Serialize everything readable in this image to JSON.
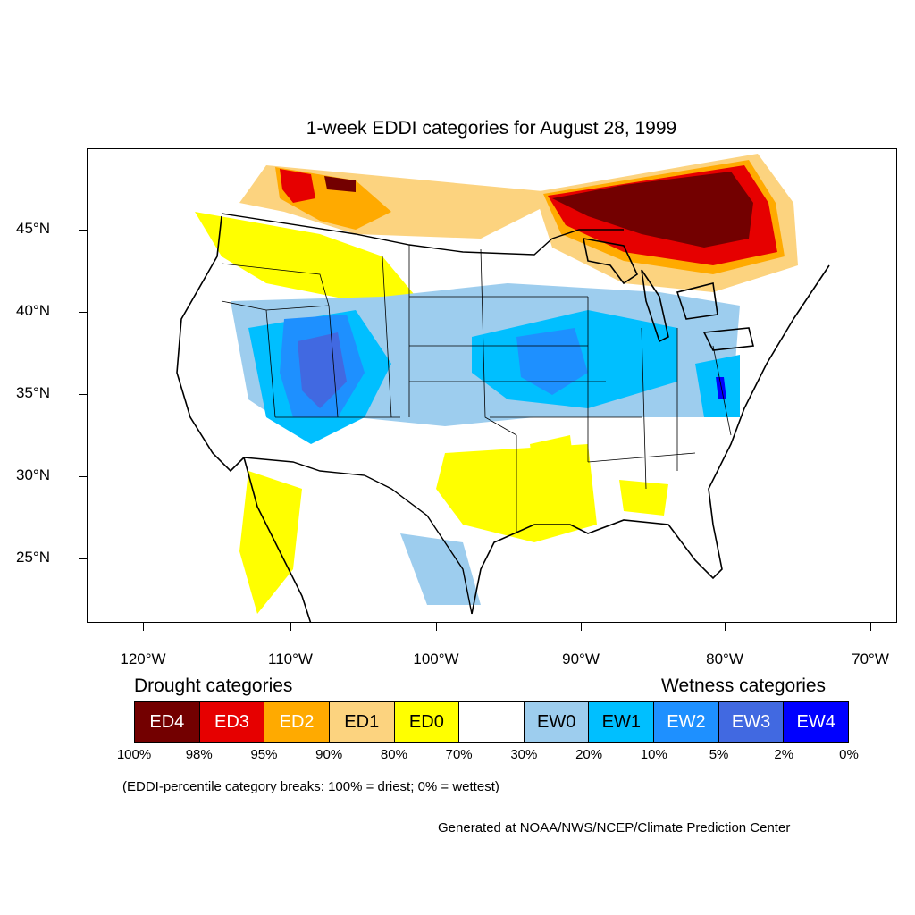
{
  "title": "1-week EDDI categories for August 28, 1999",
  "axes": {
    "lat_labels": [
      "45°N",
      "40°N",
      "35°N",
      "30°N",
      "25°N"
    ],
    "lon_labels": [
      "120°W",
      "110°W",
      "100°W",
      "90°W",
      "80°W",
      "70°W"
    ]
  },
  "legend": {
    "drought_heading": "Drought categories",
    "wetness_heading": "Wetness categories",
    "categories": [
      {
        "label": "ED4",
        "color": "#730000",
        "text_color": "#ffffff"
      },
      {
        "label": "ED3",
        "color": "#e60000",
        "text_color": "#ffffff"
      },
      {
        "label": "ED2",
        "color": "#ffaa00",
        "text_color": "#ffffff"
      },
      {
        "label": "ED1",
        "color": "#fcd37f",
        "text_color": "#000000"
      },
      {
        "label": "ED0",
        "color": "#ffff00",
        "text_color": "#000000"
      },
      {
        "label": "",
        "color": "#ffffff",
        "text_color": "#000000"
      },
      {
        "label": "EW0",
        "color": "#9dcdee",
        "text_color": "#000000"
      },
      {
        "label": "EW1",
        "color": "#00bfff",
        "text_color": "#000000"
      },
      {
        "label": "EW2",
        "color": "#1e90ff",
        "text_color": "#ffffff"
      },
      {
        "label": "EW3",
        "color": "#4169e1",
        "text_color": "#ffffff"
      },
      {
        "label": "EW4",
        "color": "#0000ff",
        "text_color": "#ffffff"
      }
    ],
    "breaks": [
      "100%",
      "98%",
      "95%",
      "90%",
      "80%",
      "70%",
      "30%",
      "20%",
      "10%",
      "5%",
      "2%",
      "0%"
    ]
  },
  "note": "(EDDI-percentile category breaks: 100% = driest; 0% = wettest)",
  "credit": "Generated at NOAA/NWS/NCEP/Climate Prediction Center"
}
